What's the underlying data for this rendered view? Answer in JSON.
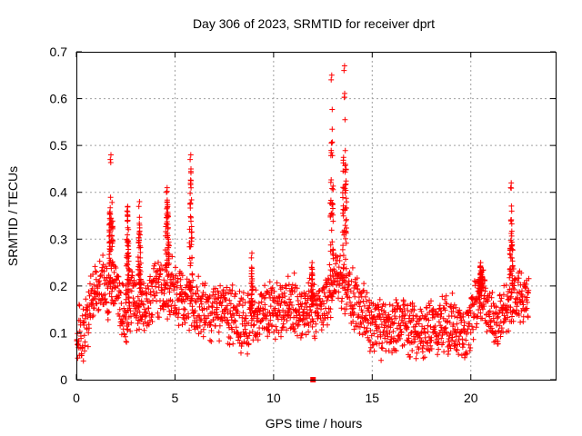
{
  "chart_data": {
    "type": "scatter",
    "title": "Day 306 of 2023, SRMTID for receiver dprt",
    "xlabel": "GPS time / hours",
    "ylabel": "SRMTID / TECUs",
    "xlim": [
      0,
      24.3
    ],
    "ylim": [
      0,
      0.7
    ],
    "xticks": [
      0,
      5,
      10,
      15,
      20
    ],
    "yticks": [
      0,
      0.1,
      0.2,
      0.3,
      0.4,
      0.5,
      0.6,
      0.7
    ],
    "grid": true,
    "marker": "plus",
    "color": "#ff0000",
    "baseline": [
      [
        0.0,
        0.09
      ],
      [
        0.3,
        0.1
      ],
      [
        0.5,
        0.11
      ],
      [
        0.8,
        0.18
      ],
      [
        1.0,
        0.21
      ],
      [
        1.3,
        0.22
      ],
      [
        1.6,
        0.18
      ],
      [
        1.9,
        0.22
      ],
      [
        2.2,
        0.17
      ],
      [
        2.5,
        0.13
      ],
      [
        2.8,
        0.18
      ],
      [
        3.2,
        0.16
      ],
      [
        3.5,
        0.15
      ],
      [
        3.8,
        0.18
      ],
      [
        4.1,
        0.2
      ],
      [
        4.5,
        0.19
      ],
      [
        4.8,
        0.2
      ],
      [
        5.2,
        0.17
      ],
      [
        5.6,
        0.16
      ],
      [
        6.0,
        0.16
      ],
      [
        6.5,
        0.15
      ],
      [
        7.0,
        0.14
      ],
      [
        7.5,
        0.15
      ],
      [
        8.0,
        0.13
      ],
      [
        8.5,
        0.12
      ],
      [
        8.8,
        0.12
      ],
      [
        9.2,
        0.14
      ],
      [
        9.6,
        0.15
      ],
      [
        10.0,
        0.15
      ],
      [
        10.5,
        0.16
      ],
      [
        11.0,
        0.16
      ],
      [
        11.5,
        0.15
      ],
      [
        12.0,
        0.15
      ],
      [
        12.5,
        0.16
      ],
      [
        12.8,
        0.18
      ],
      [
        13.2,
        0.22
      ],
      [
        13.6,
        0.2
      ],
      [
        14.0,
        0.17
      ],
      [
        14.4,
        0.15
      ],
      [
        14.8,
        0.13
      ],
      [
        15.2,
        0.11
      ],
      [
        15.6,
        0.1
      ],
      [
        16.0,
        0.11
      ],
      [
        16.5,
        0.12
      ],
      [
        17.0,
        0.11
      ],
      [
        17.5,
        0.1
      ],
      [
        18.0,
        0.11
      ],
      [
        18.5,
        0.12
      ],
      [
        19.0,
        0.12
      ],
      [
        19.5,
        0.11
      ],
      [
        19.8,
        0.1
      ],
      [
        20.2,
        0.16
      ],
      [
        20.6,
        0.19
      ],
      [
        21.0,
        0.14
      ],
      [
        21.4,
        0.12
      ],
      [
        21.8,
        0.15
      ],
      [
        22.2,
        0.19
      ],
      [
        22.6,
        0.18
      ],
      [
        22.9,
        0.17
      ]
    ],
    "spikes": [
      {
        "x": 1.75,
        "peak": 0.48,
        "width": 0.2
      },
      {
        "x": 2.6,
        "peak": 0.37,
        "width": 0.2
      },
      {
        "x": 3.2,
        "peak": 0.38,
        "width": 0.15
      },
      {
        "x": 4.6,
        "peak": 0.41,
        "width": 0.2
      },
      {
        "x": 5.8,
        "peak": 0.48,
        "width": 0.15
      },
      {
        "x": 8.9,
        "peak": 0.27,
        "width": 0.1
      },
      {
        "x": 11.95,
        "peak": 0.25,
        "width": 0.1
      },
      {
        "x": 12.95,
        "peak": 0.65,
        "width": 0.15
      },
      {
        "x": 13.6,
        "peak": 0.67,
        "width": 0.2
      },
      {
        "x": 20.5,
        "peak": 0.25,
        "width": 0.2
      },
      {
        "x": 22.05,
        "peak": 0.42,
        "width": 0.15
      }
    ],
    "outliers": [
      {
        "x": 12.0,
        "y": 0.0
      }
    ]
  }
}
